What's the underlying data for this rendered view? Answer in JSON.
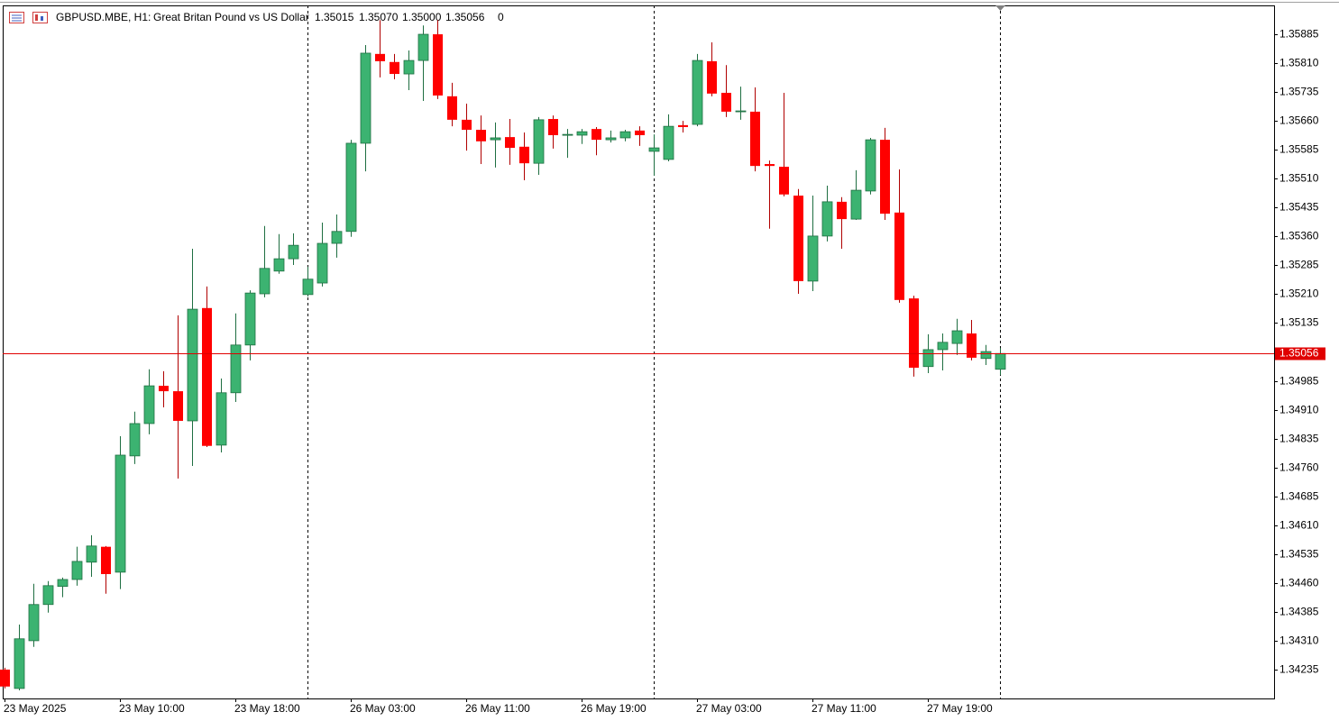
{
  "chart_data": {
    "type": "candlestick",
    "title": "GBPUSD.MBE, H1:",
    "subtitle": "Great Britan Pound vs US Dollar",
    "header_quote": [
      "1.35015",
      "1.35070",
      "1.35000",
      "1.35056"
    ],
    "header_spread": 0,
    "categories": [
      "23 May 2025",
      null,
      null,
      null,
      null,
      null,
      null,
      null,
      "23 May 10:00",
      null,
      null,
      null,
      null,
      null,
      null,
      null,
      "23 May 18:00",
      null,
      null,
      null,
      null,
      null,
      null,
      null,
      "26 May 03:00",
      null,
      null,
      null,
      null,
      null,
      null,
      null,
      "26 May 11:00",
      null,
      null,
      null,
      null,
      null,
      null,
      null,
      "26 May 19:00",
      null,
      null,
      null,
      null,
      null,
      null,
      null,
      "27 May 03:00",
      null,
      null,
      null,
      null,
      null,
      null,
      null,
      "27 May 11:00",
      null,
      null,
      null,
      null,
      null,
      null,
      null,
      "27 May 19:00",
      null,
      null,
      null,
      null,
      null
    ],
    "open": [
      1.34235,
      1.34186,
      1.3431,
      1.34404,
      1.34451,
      1.34469,
      1.34514,
      1.34554,
      1.34488,
      1.3479,
      1.34874,
      1.34972,
      1.34958,
      1.34881,
      1.35174,
      1.34818,
      1.34954,
      1.35078,
      1.35211,
      1.3527,
      1.35302,
      1.35209,
      1.35239,
      1.35342,
      1.35373,
      1.35602,
      1.35834,
      1.35813,
      1.35782,
      1.35817,
      1.35885,
      1.35724,
      1.35663,
      1.35637,
      1.35611,
      1.35618,
      1.35593,
      1.3555,
      1.35665,
      1.35623,
      1.35623,
      1.35639,
      1.35611,
      1.35616,
      1.35635,
      1.35581,
      1.3556,
      1.35649,
      1.35651,
      1.35815,
      1.35733,
      1.35684,
      1.35684,
      1.35548,
      1.35541,
      1.35466,
      1.35244,
      1.35361,
      1.3545,
      1.35405,
      1.35478,
      1.35611,
      1.35422,
      1.35199,
      1.35022,
      1.35066,
      1.35082,
      1.35108,
      1.35043,
      1.35015
    ],
    "high": [
      1.3424,
      1.34352,
      1.34458,
      1.34465,
      1.34474,
      1.34554,
      1.34584,
      1.34556,
      1.34841,
      1.34905,
      1.35015,
      1.3501,
      1.35155,
      1.35328,
      1.3523,
      1.34991,
      1.3516,
      1.3522,
      1.35387,
      1.35366,
      1.35368,
      1.35281,
      1.35396,
      1.35417,
      1.35611,
      1.35857,
      1.35922,
      1.35834,
      1.35843,
      1.35908,
      1.35922,
      1.35759,
      1.35705,
      1.35674,
      1.35656,
      1.35665,
      1.3563,
      1.3567,
      1.35674,
      1.35639,
      1.35639,
      1.35644,
      1.35635,
      1.35637,
      1.35646,
      1.35625,
      1.35677,
      1.3566,
      1.35834,
      1.35864,
      1.35805,
      1.35749,
      1.35747,
      1.35557,
      1.35733,
      1.35483,
      1.35466,
      1.35492,
      1.35462,
      1.35532,
      1.35616,
      1.35642,
      1.35534,
      1.35206,
      1.35106,
      1.35108,
      1.35146,
      1.35143,
      1.35078,
      1.3507
    ],
    "low": [
      1.34186,
      1.34181,
      1.34294,
      1.34383,
      1.34423,
      1.34453,
      1.34476,
      1.34432,
      1.34444,
      1.34769,
      1.34846,
      1.34916,
      1.34731,
      1.34764,
      1.34813,
      1.34799,
      1.3493,
      1.35038,
      1.35202,
      1.35263,
      1.35286,
      1.35204,
      1.3523,
      1.35305,
      1.35359,
      1.35529,
      1.35773,
      1.35768,
      1.3574,
      1.35712,
      1.35717,
      1.35646,
      1.35583,
      1.35548,
      1.35539,
      1.35546,
      1.35506,
      1.3552,
      1.35588,
      1.35564,
      1.356,
      1.35571,
      1.35604,
      1.35607,
      1.35595,
      1.35518,
      1.35555,
      1.3563,
      1.35646,
      1.35724,
      1.3567,
      1.35663,
      1.35529,
      1.3538,
      1.35464,
      1.35211,
      1.35218,
      1.35347,
      1.35328,
      1.35403,
      1.35469,
      1.35403,
      1.35188,
      1.34996,
      1.35005,
      1.35012,
      1.35052,
      1.35038,
      1.35026,
      1.35
    ],
    "close": [
      1.34191,
      1.34315,
      1.34404,
      1.34453,
      1.34469,
      1.34516,
      1.34556,
      1.34483,
      1.34792,
      1.34874,
      1.34972,
      1.34958,
      1.34881,
      1.35171,
      1.34816,
      1.34954,
      1.35078,
      1.35213,
      1.35277,
      1.35302,
      1.35337,
      1.35249,
      1.35342,
      1.35373,
      1.35602,
      1.35836,
      1.35815,
      1.35782,
      1.35817,
      1.35885,
      1.35726,
      1.35663,
      1.35637,
      1.35607,
      1.35616,
      1.3559,
      1.3555,
      1.35663,
      1.35623,
      1.35625,
      1.35632,
      1.35611,
      1.35616,
      1.35632,
      1.35623,
      1.3559,
      1.35646,
      1.35644,
      1.35817,
      1.35731,
      1.35684,
      1.35686,
      1.35543,
      1.35543,
      1.35469,
      1.35244,
      1.35361,
      1.3545,
      1.35405,
      1.3548,
      1.35611,
      1.35419,
      1.35195,
      1.35019,
      1.35066,
      1.35085,
      1.35115,
      1.35045,
      1.35061,
      1.35056
    ],
    "up_color": "#3cb371",
    "up_border": "#1e6e41",
    "down_color": "#ff0000",
    "down_border": "#b00000",
    "last_price_color": "#e00000",
    "ylim": [
      1.3416,
      1.3596
    ],
    "yticks": [
      1.34235,
      {
        "value": 1.3431,
        "label": "1.34310"
      },
      1.34385,
      {
        "value": 1.3446,
        "label": "1.34460"
      },
      1.34535,
      {
        "value": 1.3461,
        "label": "1.34610"
      },
      1.34685,
      {
        "value": 1.3476,
        "label": "1.34760"
      },
      1.34835,
      {
        "value": 1.3491,
        "label": "1.34910"
      },
      1.34985,
      1.35135,
      {
        "value": 1.3521,
        "label": "1.35210"
      },
      1.35285,
      {
        "value": 1.3536,
        "label": "1.35360"
      },
      1.35435,
      {
        "value": 1.3551,
        "label": "1.35510"
      },
      1.35585,
      {
        "value": 1.3566,
        "label": "1.35660"
      },
      1.35735,
      {
        "value": 1.3581,
        "label": "1.35810"
      },
      1.35885
    ],
    "grid": false
  }
}
